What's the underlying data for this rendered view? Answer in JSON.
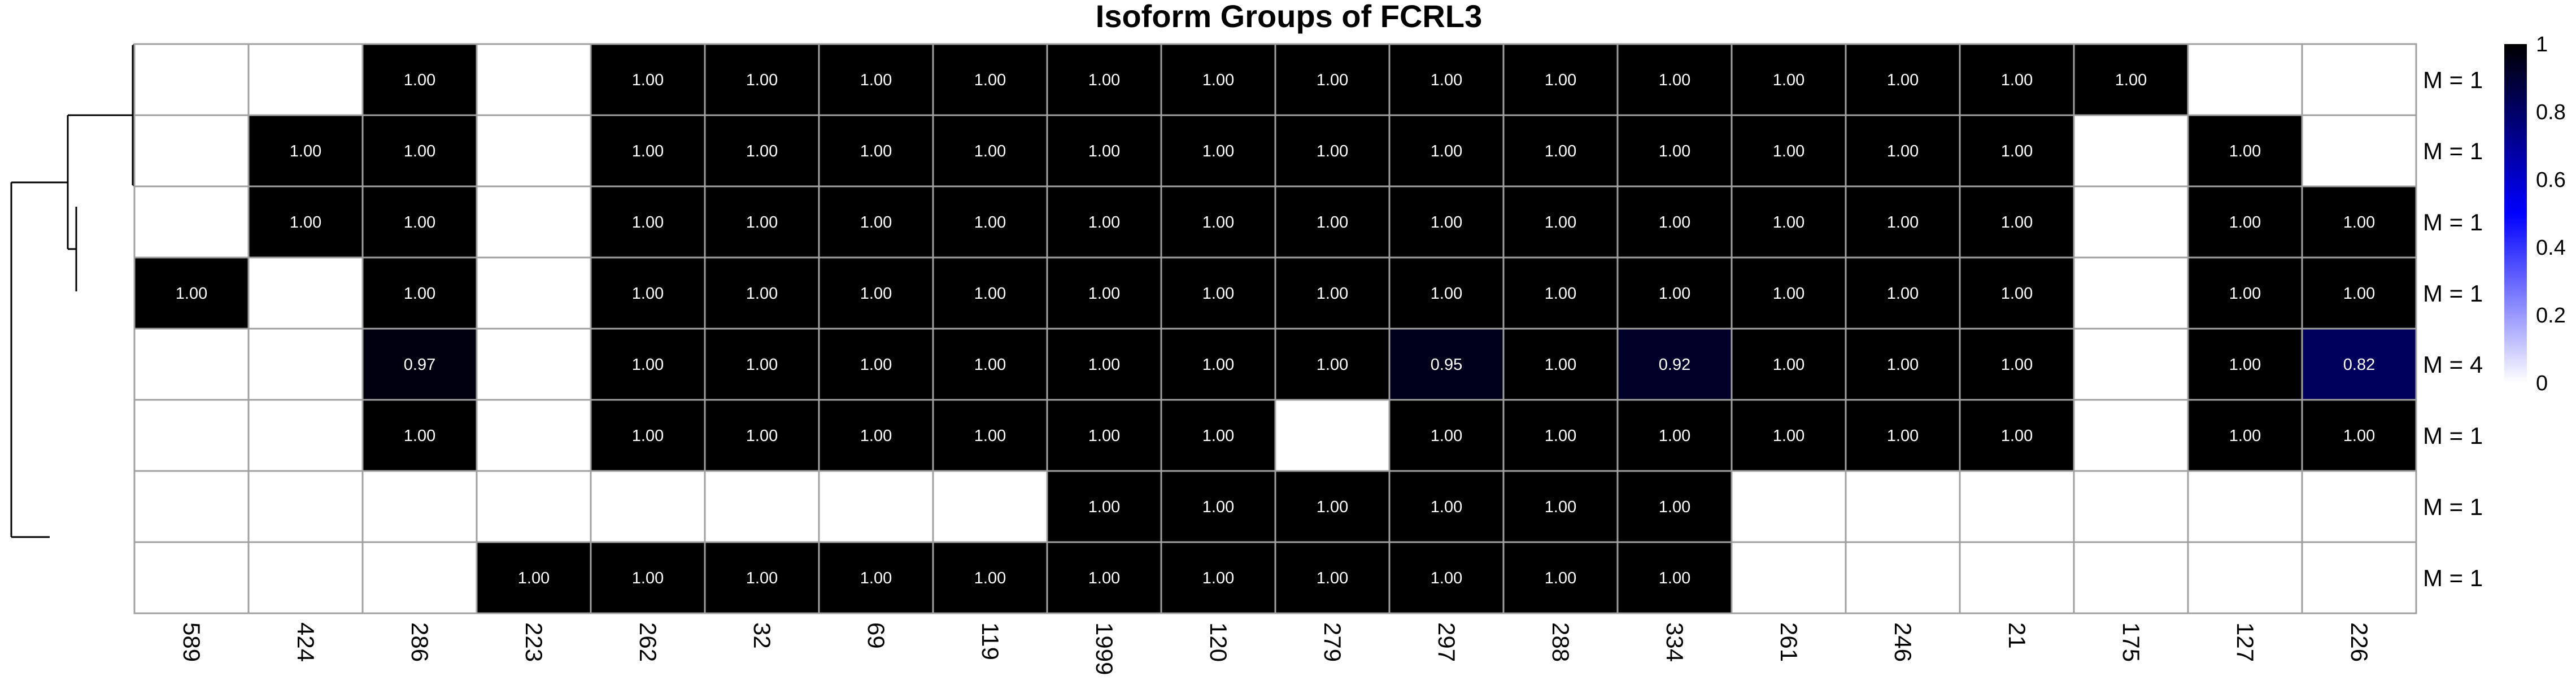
{
  "chart_data": {
    "type": "heatmap",
    "title": "Isoform Groups of FCRL3",
    "columns": [
      "589",
      "424",
      "286",
      "223",
      "262",
      "32",
      "69",
      "119",
      "1999",
      "120",
      "279",
      "297",
      "288",
      "334",
      "261",
      "246",
      "21",
      "175",
      "127",
      "226"
    ],
    "rows": [
      "M = 1",
      "M = 1",
      "M = 1",
      "M = 1",
      "M = 4",
      "M = 1",
      "M = 1",
      "M = 1"
    ],
    "values": [
      [
        null,
        null,
        1.0,
        null,
        1.0,
        1.0,
        1.0,
        1.0,
        1.0,
        1.0,
        1.0,
        1.0,
        1.0,
        1.0,
        1.0,
        1.0,
        1.0,
        1.0,
        null,
        null
      ],
      [
        null,
        1.0,
        1.0,
        null,
        1.0,
        1.0,
        1.0,
        1.0,
        1.0,
        1.0,
        1.0,
        1.0,
        1.0,
        1.0,
        1.0,
        1.0,
        1.0,
        null,
        1.0,
        null
      ],
      [
        null,
        1.0,
        1.0,
        null,
        1.0,
        1.0,
        1.0,
        1.0,
        1.0,
        1.0,
        1.0,
        1.0,
        1.0,
        1.0,
        1.0,
        1.0,
        1.0,
        null,
        1.0,
        1.0
      ],
      [
        1.0,
        null,
        1.0,
        null,
        1.0,
        1.0,
        1.0,
        1.0,
        1.0,
        1.0,
        1.0,
        1.0,
        1.0,
        1.0,
        1.0,
        1.0,
        1.0,
        null,
        1.0,
        1.0
      ],
      [
        null,
        null,
        0.97,
        null,
        1.0,
        1.0,
        1.0,
        1.0,
        1.0,
        1.0,
        1.0,
        0.95,
        1.0,
        0.92,
        1.0,
        1.0,
        1.0,
        null,
        1.0,
        0.82
      ],
      [
        null,
        null,
        1.0,
        null,
        1.0,
        1.0,
        1.0,
        1.0,
        1.0,
        1.0,
        null,
        1.0,
        1.0,
        1.0,
        1.0,
        1.0,
        1.0,
        null,
        1.0,
        1.0
      ],
      [
        null,
        null,
        null,
        null,
        null,
        null,
        null,
        null,
        1.0,
        1.0,
        1.0,
        1.0,
        1.0,
        1.0,
        null,
        null,
        null,
        null,
        null,
        null
      ],
      [
        null,
        null,
        null,
        1.0,
        1.0,
        1.0,
        1.0,
        1.0,
        1.0,
        1.0,
        1.0,
        1.0,
        1.0,
        1.0,
        null,
        null,
        null,
        null,
        null,
        null
      ]
    ],
    "legend": {
      "ticks": [
        "1",
        "0.8",
        "0.6",
        "0.4",
        "0.2",
        "0"
      ],
      "range": [
        0,
        1
      ],
      "colors": {
        "low": "#ffffff",
        "mid": "#0000ff",
        "high": "#000000"
      },
      "placement": "right"
    },
    "grid_color": "#a0a0a0",
    "dendrogram": "left"
  }
}
